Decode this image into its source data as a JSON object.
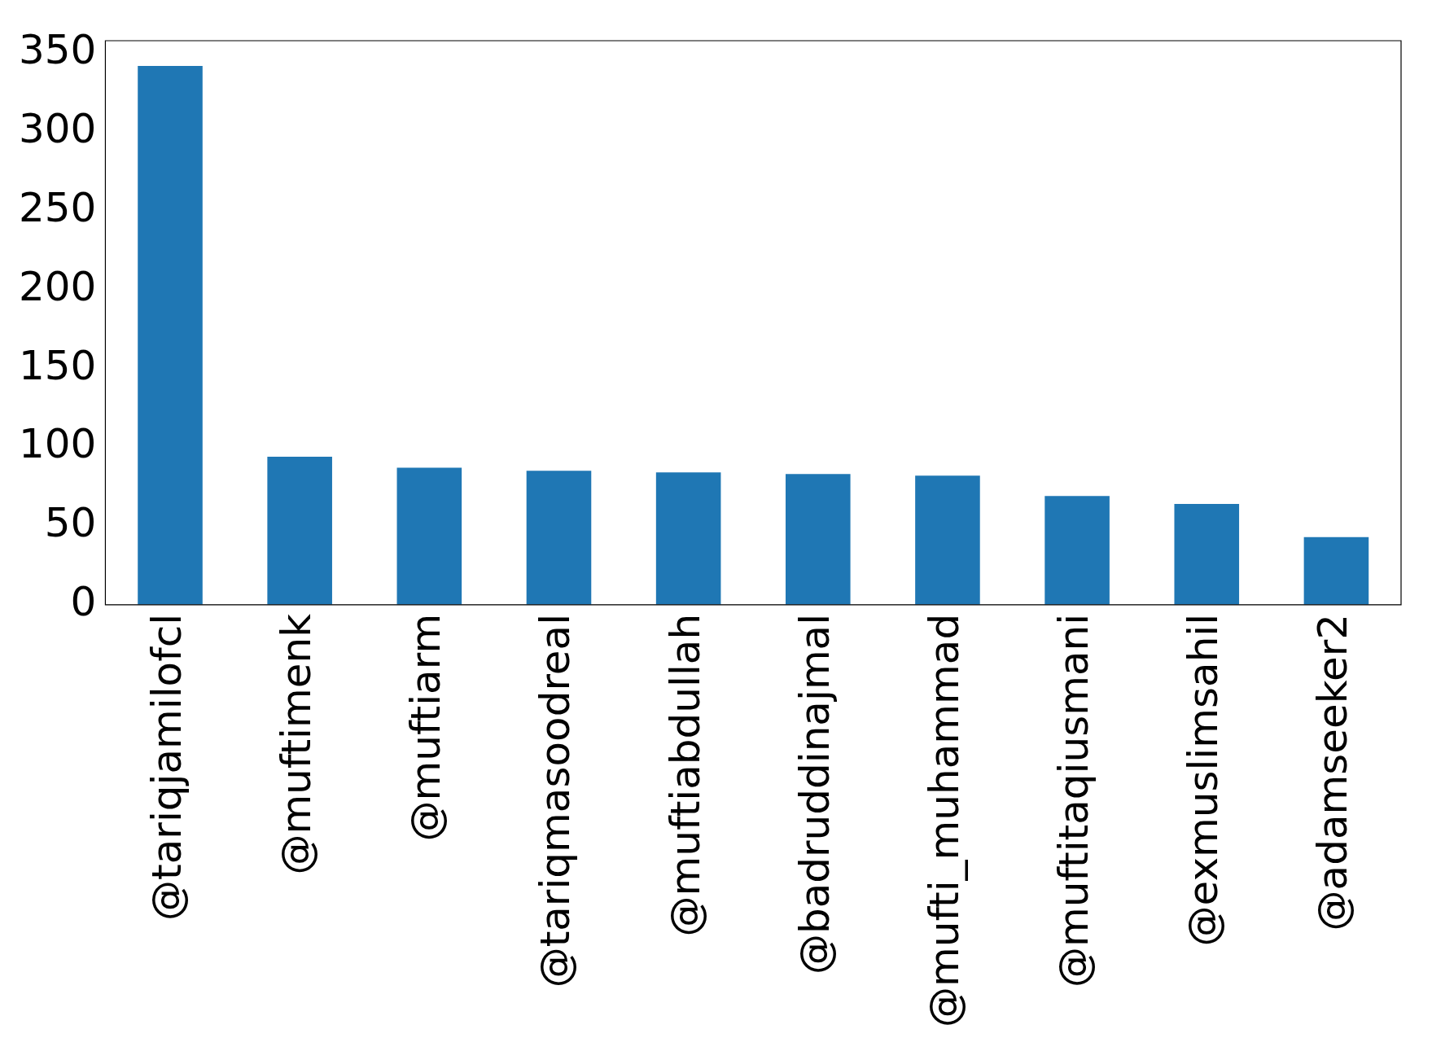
{
  "chart_data": {
    "type": "bar",
    "categories": [
      "@tariqjamilofcl",
      "@muftimenk",
      "@muftiarm",
      "@tariqmasoodreal",
      "@muftiabdullah",
      "@badruddinajmal",
      "@mufti_muhammad",
      "@muftitaqiusmani",
      "@exmuslimsahil",
      "@adamseeker2"
    ],
    "values": [
      342,
      94,
      87,
      85,
      84,
      83,
      82,
      69,
      64,
      43
    ],
    "color": "#1f77b4",
    "ylim": [
      0,
      358
    ],
    "yticks": [
      0,
      50,
      100,
      150,
      200,
      250,
      300,
      350
    ],
    "grid": false,
    "legend": false
  }
}
